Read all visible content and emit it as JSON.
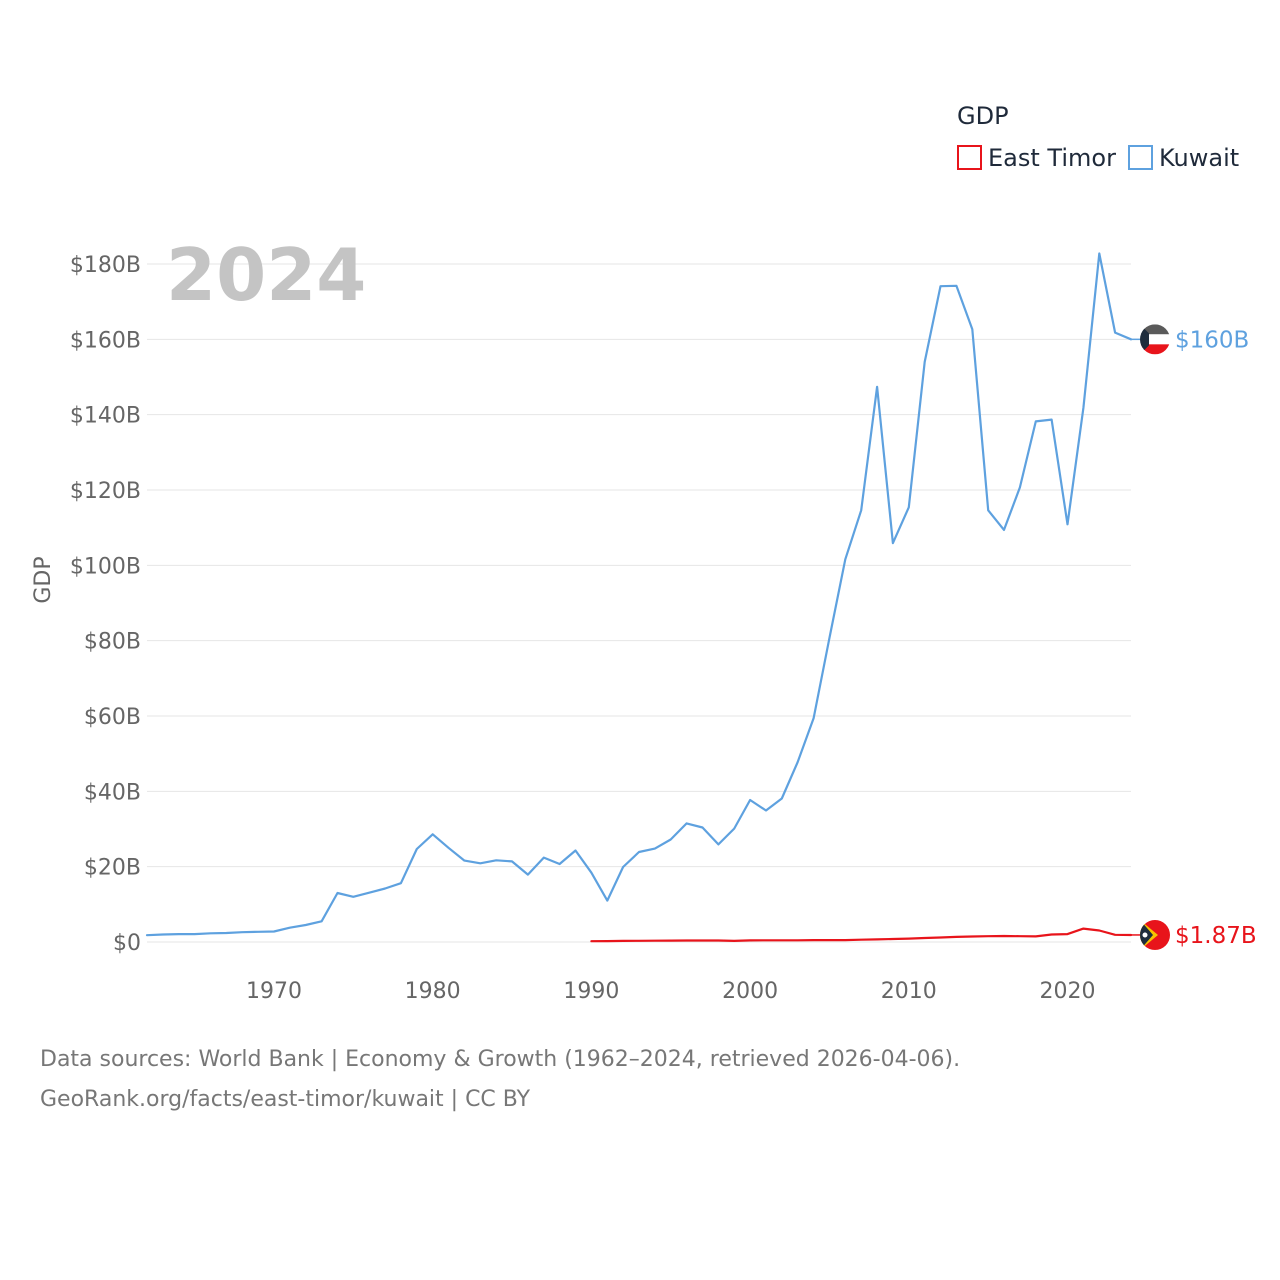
{
  "chart_data": {
    "type": "line",
    "title": "GDP",
    "current_year_label": "2024",
    "ylabel": "GDP",
    "xlim": [
      1962,
      2024
    ],
    "ylim": [
      0,
      180
    ],
    "y_unit": "billion USD",
    "y_ticks": [
      0,
      20,
      40,
      60,
      80,
      100,
      120,
      140,
      160,
      180
    ],
    "y_tick_labels": [
      "$0",
      "$20B",
      "$40B",
      "$60B",
      "$80B",
      "$100B",
      "$120B",
      "$140B",
      "$160B",
      "$180B"
    ],
    "x_ticks": [
      1970,
      1980,
      1990,
      2000,
      2010,
      2020
    ],
    "x_tick_labels": [
      "1970",
      "1980",
      "1990",
      "2000",
      "2010",
      "2020"
    ],
    "grid": true,
    "legend_position": "top-right",
    "series": [
      {
        "name": "East Timor",
        "color": "#e8141b",
        "end_label": "$1.87B",
        "flag_icon": "east-timor-flag-icon",
        "x": [
          1990,
          1991,
          1992,
          1993,
          1994,
          1995,
          1996,
          1997,
          1998,
          1999,
          2000,
          2001,
          2002,
          2003,
          2004,
          2005,
          2006,
          2007,
          2008,
          2009,
          2010,
          2011,
          2012,
          2013,
          2014,
          2015,
          2016,
          2017,
          2018,
          2019,
          2020,
          2021,
          2022,
          2023,
          2024
        ],
        "values": [
          0.2,
          0.25,
          0.3,
          0.33,
          0.35,
          0.38,
          0.4,
          0.4,
          0.4,
          0.3,
          0.42,
          0.45,
          0.45,
          0.45,
          0.5,
          0.5,
          0.5,
          0.6,
          0.7,
          0.8,
          0.9,
          1.05,
          1.2,
          1.35,
          1.45,
          1.55,
          1.6,
          1.55,
          1.5,
          2.0,
          2.1,
          3.55,
          3.05,
          1.9,
          1.87
        ]
      },
      {
        "name": "Kuwait",
        "color": "#5ea1df",
        "end_label": "$160B",
        "flag_icon": "kuwait-flag-icon",
        "x": [
          1962,
          1963,
          1964,
          1965,
          1966,
          1967,
          1968,
          1969,
          1970,
          1971,
          1972,
          1973,
          1974,
          1975,
          1976,
          1977,
          1978,
          1979,
          1980,
          1981,
          1982,
          1983,
          1984,
          1985,
          1986,
          1987,
          1988,
          1989,
          1990,
          1991,
          1992,
          1993,
          1994,
          1995,
          1996,
          1997,
          1998,
          1999,
          2000,
          2001,
          2002,
          2003,
          2004,
          2005,
          2006,
          2007,
          2008,
          2009,
          2010,
          2011,
          2012,
          2013,
          2014,
          2015,
          2016,
          2017,
          2018,
          2019,
          2020,
          2021,
          2022,
          2023,
          2024
        ],
        "values": [
          1.8,
          2.0,
          2.1,
          2.1,
          2.3,
          2.4,
          2.6,
          2.7,
          2.8,
          3.8,
          4.5,
          5.5,
          13.0,
          12.0,
          13.1,
          14.2,
          15.6,
          24.7,
          28.6,
          25.0,
          21.6,
          20.9,
          21.7,
          21.4,
          17.9,
          22.4,
          20.7,
          24.3,
          18.4,
          11.0,
          19.9,
          23.9,
          24.8,
          27.2,
          31.5,
          30.4,
          25.9,
          30.1,
          37.7,
          34.9,
          38.1,
          47.8,
          59.4,
          80.8,
          101.6,
          114.6,
          147.4,
          105.9,
          115.4,
          154.0,
          174.1,
          174.2,
          162.7,
          114.6,
          109.4,
          120.7,
          138.2,
          138.7,
          110.9,
          141.8,
          182.8,
          161.8,
          160.0
        ]
      }
    ]
  },
  "footer": {
    "line1": "Data sources: World Bank | Economy & Growth (1962–2024, retrieved 2026-04-06).",
    "line2": "GeoRank.org/facts/east-timor/kuwait | CC BY"
  }
}
